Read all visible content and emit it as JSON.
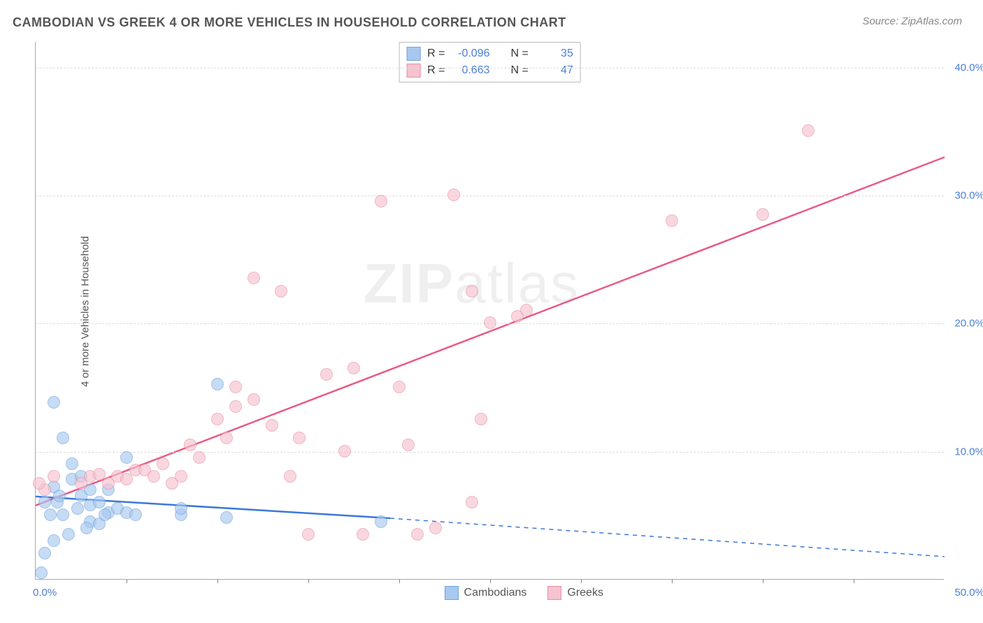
{
  "title": "CAMBODIAN VS GREEK 4 OR MORE VEHICLES IN HOUSEHOLD CORRELATION CHART",
  "source": "Source: ZipAtlas.com",
  "ylabel": "4 or more Vehicles in Household",
  "watermark": "ZIPatlas",
  "chart": {
    "type": "scatter",
    "xlim": [
      0,
      50
    ],
    "ylim": [
      0,
      42
    ],
    "background_color": "#ffffff",
    "grid_color": "#dddddd",
    "axis_color": "#aaaaaa",
    "tick_color": "#888888",
    "tick_label_color": "#4a7fd8",
    "tick_fontsize": 15,
    "title_fontsize": 18,
    "title_color": "#555555",
    "ylabel_fontsize": 15,
    "yticks": [
      10,
      20,
      30,
      40
    ],
    "ytick_labels": [
      "10.0%",
      "20.0%",
      "30.0%",
      "40.0%"
    ],
    "x_minor_ticks": [
      5,
      10,
      15,
      20,
      25,
      30,
      35,
      40,
      45
    ],
    "x_left_label": "0.0%",
    "x_right_label": "50.0%",
    "series": [
      {
        "name": "Cambodians",
        "fill": "#a9c8ef",
        "stroke": "#6fa3e0",
        "opacity": 0.65,
        "marker_radius": 9,
        "line_color": "#3b78d8",
        "line_width": 2.5,
        "regression": {
          "x1": 0,
          "y1": 6.5,
          "x2": 19.5,
          "y2": 4.8,
          "dash_x2": 50,
          "dash_y2": 1.8
        },
        "points": [
          [
            0.3,
            0.5
          ],
          [
            0.5,
            2.0
          ],
          [
            1.0,
            13.8
          ],
          [
            1.2,
            6.0
          ],
          [
            1.5,
            11.0
          ],
          [
            0.8,
            5.0
          ],
          [
            1.0,
            7.2
          ],
          [
            1.3,
            6.5
          ],
          [
            0.5,
            6.0
          ],
          [
            1.5,
            5.0
          ],
          [
            2.0,
            7.8
          ],
          [
            2.0,
            9.0
          ],
          [
            2.3,
            5.5
          ],
          [
            2.5,
            8.0
          ],
          [
            2.5,
            6.5
          ],
          [
            3.0,
            7.0
          ],
          [
            3.0,
            4.5
          ],
          [
            3.0,
            5.8
          ],
          [
            3.5,
            6.0
          ],
          [
            3.5,
            4.3
          ],
          [
            4.0,
            5.2
          ],
          [
            4.0,
            7.0
          ],
          [
            4.5,
            5.5
          ],
          [
            5.0,
            5.2
          ],
          [
            5.0,
            9.5
          ],
          [
            5.5,
            5.0
          ],
          [
            8.0,
            5.0
          ],
          [
            8.0,
            5.5
          ],
          [
            10.0,
            15.2
          ],
          [
            10.5,
            4.8
          ],
          [
            1.0,
            3.0
          ],
          [
            1.8,
            3.5
          ],
          [
            3.8,
            5.0
          ],
          [
            19.0,
            4.5
          ],
          [
            2.8,
            4.0
          ]
        ]
      },
      {
        "name": "Greeks",
        "fill": "#f6c3cf",
        "stroke": "#e98fa5",
        "opacity": 0.65,
        "marker_radius": 9,
        "line_color": "#e85a84",
        "line_width": 2.5,
        "regression": {
          "x1": 0,
          "y1": 5.8,
          "x2": 50,
          "y2": 33.0
        },
        "points": [
          [
            0.5,
            7.0
          ],
          [
            1.0,
            8.0
          ],
          [
            0.2,
            7.5
          ],
          [
            2.5,
            7.5
          ],
          [
            3.0,
            8.0
          ],
          [
            3.5,
            8.2
          ],
          [
            4.0,
            7.5
          ],
          [
            4.5,
            8.0
          ],
          [
            5.0,
            7.8
          ],
          [
            5.5,
            8.5
          ],
          [
            6.0,
            8.5
          ],
          [
            6.5,
            8.0
          ],
          [
            7.0,
            9.0
          ],
          [
            7.5,
            7.5
          ],
          [
            8.0,
            8.0
          ],
          [
            8.5,
            10.5
          ],
          [
            9.0,
            9.5
          ],
          [
            10.0,
            12.5
          ],
          [
            10.5,
            11.0
          ],
          [
            11.0,
            13.5
          ],
          [
            11.0,
            15.0
          ],
          [
            12.0,
            23.5
          ],
          [
            12.0,
            14.0
          ],
          [
            13.0,
            12.0
          ],
          [
            13.5,
            22.5
          ],
          [
            14.0,
            8.0
          ],
          [
            14.5,
            11.0
          ],
          [
            15.0,
            3.5
          ],
          [
            16.0,
            16.0
          ],
          [
            17.0,
            10.0
          ],
          [
            17.5,
            16.5
          ],
          [
            18.0,
            3.5
          ],
          [
            19.0,
            29.5
          ],
          [
            20.0,
            15.0
          ],
          [
            20.5,
            10.5
          ],
          [
            21.0,
            3.5
          ],
          [
            22.0,
            4.0
          ],
          [
            23.0,
            30.0
          ],
          [
            24.0,
            22.5
          ],
          [
            24.5,
            12.5
          ],
          [
            25.0,
            20.0
          ],
          [
            26.5,
            20.5
          ],
          [
            27.0,
            21.0
          ],
          [
            24.0,
            6.0
          ],
          [
            35.0,
            28.0
          ],
          [
            40.0,
            28.5
          ],
          [
            42.5,
            35.0
          ]
        ]
      }
    ],
    "stats": [
      {
        "series": 0,
        "R": "-0.096",
        "N": "35"
      },
      {
        "series": 1,
        "R": "0.663",
        "N": "47"
      }
    ],
    "legend": [
      {
        "label": "Cambodians",
        "fill": "#a9c8ef",
        "stroke": "#6fa3e0"
      },
      {
        "label": "Greeks",
        "fill": "#f6c3cf",
        "stroke": "#e98fa5"
      }
    ],
    "stats_labels": {
      "R": "R =",
      "N": "N ="
    }
  }
}
